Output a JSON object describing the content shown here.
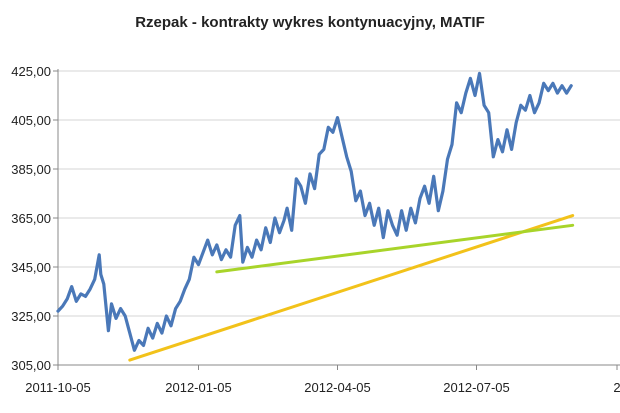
{
  "chart_data": {
    "type": "line",
    "title": "Rzepak - kontrakty wykres kontynuacyjny, MATIF",
    "xlabel": "",
    "ylabel": "",
    "x_tick_labels": [
      "2011-10-05",
      "2012-01-05",
      "2012-04-05",
      "2012-07-05",
      "2"
    ],
    "y_tick_labels": [
      "425,00",
      "405,00",
      "385,00",
      "365,00",
      "345,00",
      "325,00",
      "305,00"
    ],
    "ylim": [
      305,
      425
    ],
    "grid": "horizontal",
    "legend": "none",
    "colors": {
      "price": "#4a78b8",
      "trend_long": "#f2c21a",
      "trend_short": "#a8d42a",
      "grid": "#d4d4d4",
      "axis": "#888888"
    },
    "series": [
      {
        "values": [
          [
            "2011-10-05",
            327
          ],
          [
            "2011-10-08",
            329
          ],
          [
            "2011-10-11",
            332
          ],
          [
            "2011-10-14",
            337
          ],
          [
            "2011-10-17",
            331
          ],
          [
            "2011-10-20",
            334
          ],
          [
            "2011-10-23",
            333
          ],
          [
            "2011-10-26",
            336
          ],
          [
            "2011-10-29",
            340
          ],
          [
            "2011-11-01",
            350
          ],
          [
            "2011-11-02",
            342
          ],
          [
            "2011-11-04",
            338
          ],
          [
            "2011-11-07",
            319
          ],
          [
            "2011-11-09",
            330
          ],
          [
            "2011-11-12",
            324
          ],
          [
            "2011-11-15",
            328
          ],
          [
            "2011-11-18",
            325
          ],
          [
            "2011-11-21",
            318
          ],
          [
            "2011-11-24",
            311
          ],
          [
            "2011-11-27",
            315
          ],
          [
            "2011-11-30",
            313
          ],
          [
            "2011-12-03",
            320
          ],
          [
            "2011-12-06",
            316
          ],
          [
            "2011-12-09",
            322
          ],
          [
            "2011-12-12",
            318
          ],
          [
            "2011-12-15",
            325
          ],
          [
            "2011-12-18",
            321
          ],
          [
            "2011-12-21",
            328
          ],
          [
            "2011-12-24",
            331
          ],
          [
            "2011-12-27",
            336
          ],
          [
            "2011-12-30",
            340
          ],
          [
            "2012-01-02",
            349
          ],
          [
            "2012-01-05",
            346
          ],
          [
            "2012-01-08",
            351
          ],
          [
            "2012-01-11",
            356
          ],
          [
            "2012-01-14",
            350
          ],
          [
            "2012-01-17",
            354
          ],
          [
            "2012-01-20",
            348
          ],
          [
            "2012-01-23",
            352
          ],
          [
            "2012-01-26",
            349
          ],
          [
            "2012-01-29",
            362
          ],
          [
            "2012-02-01",
            366
          ],
          [
            "2012-02-03",
            347
          ],
          [
            "2012-02-06",
            353
          ],
          [
            "2012-02-09",
            349
          ],
          [
            "2012-02-12",
            356
          ],
          [
            "2012-02-15",
            352
          ],
          [
            "2012-02-18",
            361
          ],
          [
            "2012-02-21",
            355
          ],
          [
            "2012-02-24",
            365
          ],
          [
            "2012-02-27",
            359
          ],
          [
            "2012-03-01",
            364
          ],
          [
            "2012-03-03",
            369
          ],
          [
            "2012-03-06",
            360
          ],
          [
            "2012-03-09",
            381
          ],
          [
            "2012-03-12",
            378
          ],
          [
            "2012-03-15",
            371
          ],
          [
            "2012-03-18",
            383
          ],
          [
            "2012-03-21",
            377
          ],
          [
            "2012-03-24",
            391
          ],
          [
            "2012-03-27",
            393
          ],
          [
            "2012-03-30",
            402
          ],
          [
            "2012-04-02",
            400
          ],
          [
            "2012-04-05",
            406
          ],
          [
            "2012-04-08",
            398
          ],
          [
            "2012-04-11",
            390
          ],
          [
            "2012-04-14",
            384
          ],
          [
            "2012-04-17",
            372
          ],
          [
            "2012-04-20",
            376
          ],
          [
            "2012-04-23",
            366
          ],
          [
            "2012-04-26",
            371
          ],
          [
            "2012-04-29",
            362
          ],
          [
            "2012-05-02",
            369
          ],
          [
            "2012-05-05",
            357
          ],
          [
            "2012-05-08",
            368
          ],
          [
            "2012-05-11",
            362
          ],
          [
            "2012-05-14",
            358
          ],
          [
            "2012-05-17",
            368
          ],
          [
            "2012-05-20",
            360
          ],
          [
            "2012-05-23",
            369
          ],
          [
            "2012-05-26",
            363
          ],
          [
            "2012-05-29",
            373
          ],
          [
            "2012-06-01",
            378
          ],
          [
            "2012-06-04",
            371
          ],
          [
            "2012-06-07",
            382
          ],
          [
            "2012-06-10",
            368
          ],
          [
            "2012-06-13",
            376
          ],
          [
            "2012-06-16",
            389
          ],
          [
            "2012-06-19",
            395
          ],
          [
            "2012-06-22",
            412
          ],
          [
            "2012-06-25",
            408
          ],
          [
            "2012-06-28",
            416
          ],
          [
            "2012-07-01",
            422
          ],
          [
            "2012-07-04",
            415
          ],
          [
            "2012-07-07",
            424
          ],
          [
            "2012-07-10",
            411
          ],
          [
            "2012-07-13",
            408
          ],
          [
            "2012-07-16",
            390
          ],
          [
            "2012-07-19",
            397
          ],
          [
            "2012-07-22",
            392
          ],
          [
            "2012-07-25",
            401
          ],
          [
            "2012-07-28",
            393
          ],
          [
            "2012-07-31",
            404
          ],
          [
            "2012-08-03",
            411
          ],
          [
            "2012-08-06",
            409
          ],
          [
            "2012-08-09",
            415
          ],
          [
            "2012-08-12",
            408
          ],
          [
            "2012-08-15",
            412
          ],
          [
            "2012-08-18",
            420
          ],
          [
            "2012-08-21",
            417
          ],
          [
            "2012-08-24",
            420
          ],
          [
            "2012-08-27",
            416
          ],
          [
            "2012-08-30",
            419
          ],
          [
            "2012-09-02",
            416
          ],
          [
            "2012-09-05",
            419
          ]
        ]
      },
      {
        "values": [
          [
            "2011-11-21",
            307
          ],
          [
            "2012-09-06",
            366
          ]
        ]
      },
      {
        "values": [
          [
            "2012-01-17",
            343
          ],
          [
            "2012-09-06",
            362
          ]
        ]
      }
    ]
  }
}
